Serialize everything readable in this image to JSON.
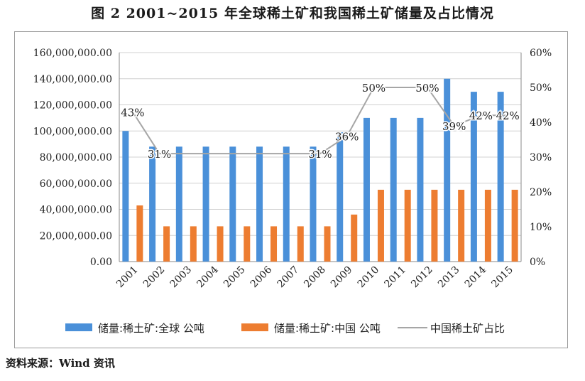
{
  "page": {
    "title": "图 2 2001~2015 年全球稀土矿和我国稀土矿储量及占比情况",
    "source": "资料来源：Wind 资讯"
  },
  "chart_data": {
    "type": "bar",
    "categories": [
      "2001",
      "2002",
      "2003",
      "2004",
      "2005",
      "2006",
      "2007",
      "2008",
      "2009",
      "2010",
      "2011",
      "2012",
      "2013",
      "2014",
      "2015"
    ],
    "series": [
      {
        "name": "储量:稀土矿:全球 公吨",
        "kind": "bar",
        "axis": "left",
        "color": "#4a90d9",
        "values": [
          100000000,
          88000000,
          88000000,
          88000000,
          88000000,
          88000000,
          88000000,
          88000000,
          99000000,
          110000000,
          110000000,
          110000000,
          140000000,
          130000000,
          130000000
        ]
      },
      {
        "name": "储量:稀土矿:中国 公吨",
        "kind": "bar",
        "axis": "left",
        "color": "#ed7d31",
        "values": [
          43000000,
          27000000,
          27000000,
          27000000,
          27000000,
          27000000,
          27000000,
          27000000,
          36000000,
          55000000,
          55000000,
          55000000,
          55000000,
          55000000,
          55000000
        ]
      },
      {
        "name": "中国稀土矿占比",
        "kind": "line",
        "axis": "right",
        "color": "#a6a6a6",
        "values": [
          43,
          31,
          31,
          31,
          31,
          31,
          31,
          31,
          36,
          50,
          50,
          50,
          39,
          42,
          42
        ]
      }
    ],
    "data_labels": [
      "43%",
      "31%",
      "",
      "",
      "",
      "",
      "",
      "31%",
      "36%",
      "50%",
      "",
      "50%",
      "39%",
      "42%",
      "42%"
    ],
    "y_left": {
      "min": 0,
      "max": 160000000,
      "ticks": [
        "0.00",
        "20,000,000.00",
        "40,000,000.00",
        "60,000,000.00",
        "80,000,000.00",
        "100,000,000.00",
        "120,000,000.00",
        "140,000,000.00",
        "160,000,000.00"
      ]
    },
    "y_right": {
      "min": 0,
      "max": 60,
      "ticks": [
        "0%",
        "10%",
        "20%",
        "30%",
        "40%",
        "50%",
        "60%"
      ]
    },
    "grid": true,
    "legend_position": "bottom"
  }
}
